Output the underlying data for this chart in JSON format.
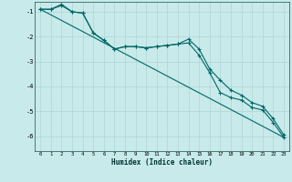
{
  "xlabel": "Humidex (Indice chaleur)",
  "background_color": "#c8eaea",
  "grid_color": "#b0d4d4",
  "line_color": "#006666",
  "xlim": [
    -0.5,
    23.5
  ],
  "ylim": [
    -6.6,
    -0.6
  ],
  "yticks": [
    -6,
    -5,
    -4,
    -3,
    -2,
    -1
  ],
  "xticks": [
    0,
    1,
    2,
    3,
    4,
    5,
    6,
    7,
    8,
    9,
    10,
    11,
    12,
    13,
    14,
    15,
    16,
    17,
    18,
    19,
    20,
    21,
    22,
    23
  ],
  "line1_x": [
    0,
    1,
    2,
    3,
    4,
    5,
    6,
    7,
    8,
    9,
    10,
    11,
    12,
    13,
    14,
    15,
    16,
    17,
    18,
    19,
    20,
    21,
    22,
    23
  ],
  "line1_y": [
    -0.9,
    -0.9,
    -0.75,
    -1.0,
    -1.05,
    -1.85,
    -2.15,
    -2.5,
    -2.4,
    -2.4,
    -2.45,
    -2.4,
    -2.35,
    -2.3,
    -2.25,
    -2.75,
    -3.45,
    -4.25,
    -4.45,
    -4.55,
    -4.85,
    -4.95,
    -5.45,
    -6.05
  ],
  "line2_x": [
    0,
    1,
    2,
    3,
    4,
    5,
    6,
    7,
    8,
    9,
    10,
    11,
    12,
    13,
    14,
    15,
    16,
    17,
    18,
    19,
    20,
    21,
    22,
    23
  ],
  "line2_y": [
    -0.9,
    -0.9,
    -0.7,
    -1.0,
    -1.05,
    -1.85,
    -2.15,
    -2.5,
    -2.4,
    -2.4,
    -2.45,
    -2.4,
    -2.35,
    -2.3,
    -2.1,
    -2.5,
    -3.3,
    -3.75,
    -4.15,
    -4.35,
    -4.65,
    -4.8,
    -5.3,
    -5.95
  ],
  "line3_x": [
    0,
    23
  ],
  "line3_y": [
    -0.9,
    -6.05
  ]
}
